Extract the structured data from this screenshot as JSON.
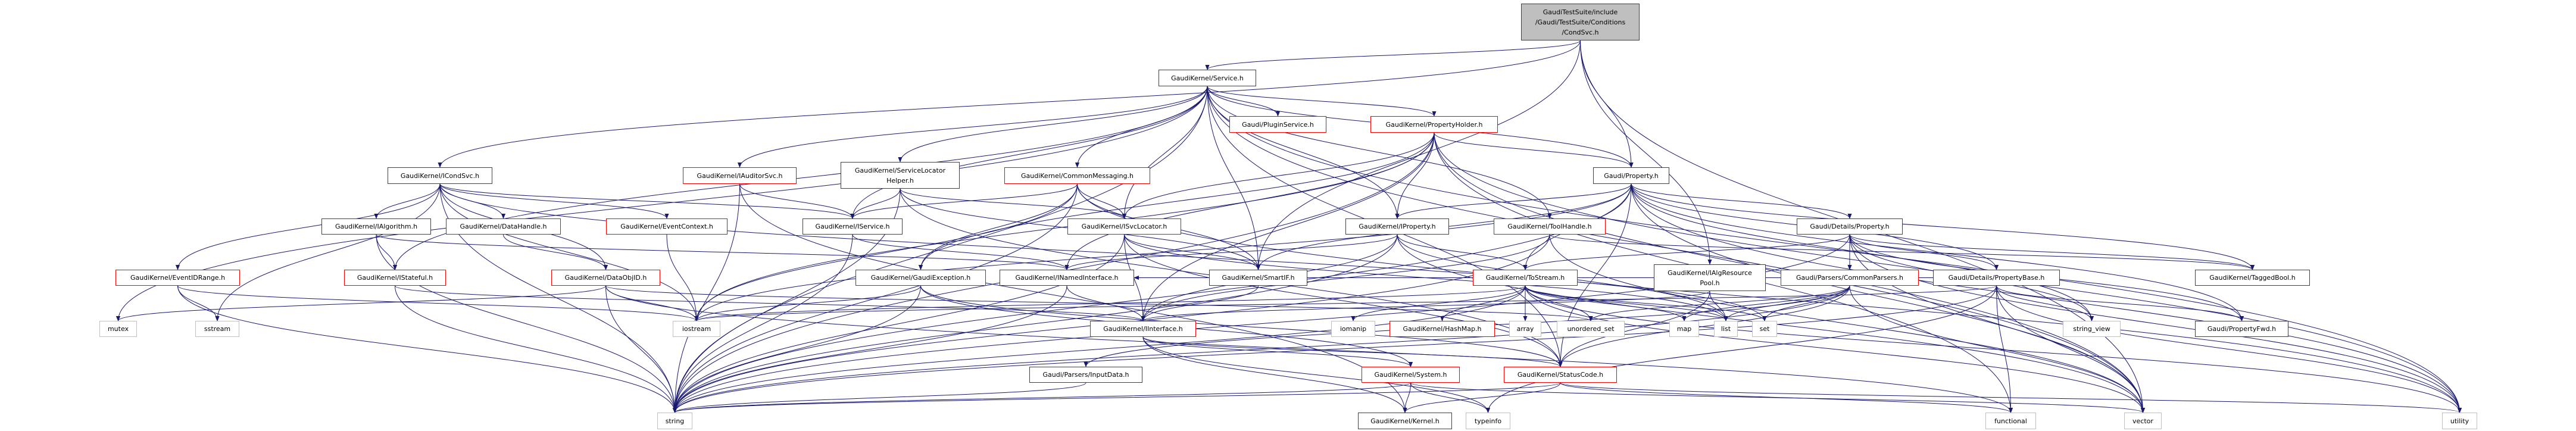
{
  "colors": {
    "edge": "#191970",
    "black_border": "#404040",
    "red_border": "#ff0000",
    "gray_border": "#bfbfbf",
    "root_fill": "#bfbfbf"
  },
  "nodes": [
    {
      "id": "CondSvc",
      "label": "GaudiTestSuite/include\n/Gaudi/TestSuite/Conditions\n/CondSvc.h",
      "style": "root"
    },
    {
      "id": "Service",
      "label": "GaudiKernel/Service.h",
      "style": "black"
    },
    {
      "id": "ICondSvc",
      "label": "GaudiKernel/ICondSvc.h",
      "style": "black"
    },
    {
      "id": "IAuditorSvc",
      "label": "GaudiKernel/IAuditorSvc.h",
      "style": "red"
    },
    {
      "id": "SvcLocHelper",
      "label": "GaudiKernel/ServiceLocator\nHelper.h",
      "style": "black"
    },
    {
      "id": "CommonMessaging",
      "label": "GaudiKernel/CommonMessaging.h",
      "style": "red"
    },
    {
      "id": "PluginService",
      "label": "Gaudi/PluginService.h",
      "style": "red"
    },
    {
      "id": "PropertyHolder",
      "label": "GaudiKernel/PropertyHolder.h",
      "style": "red"
    },
    {
      "id": "Property",
      "label": "Gaudi/Property.h",
      "style": "black"
    },
    {
      "id": "IAlgorithm",
      "label": "GaudiKernel/IAlgorithm.h",
      "style": "black"
    },
    {
      "id": "DataHandle",
      "label": "GaudiKernel/DataHandle.h",
      "style": "red"
    },
    {
      "id": "EventContext",
      "label": "GaudiKernel/EventContext.h",
      "style": "red"
    },
    {
      "id": "IService",
      "label": "GaudiKernel/IService.h",
      "style": "black"
    },
    {
      "id": "ISvcLocator",
      "label": "GaudiKernel/ISvcLocator.h",
      "style": "red"
    },
    {
      "id": "IProperty",
      "label": "GaudiKernel/IProperty.h",
      "style": "black"
    },
    {
      "id": "ToolHandle",
      "label": "GaudiKernel/ToolHandle.h",
      "style": "red"
    },
    {
      "id": "DetailsProperty",
      "label": "Gaudi/Details/Property.h",
      "style": "black"
    },
    {
      "id": "EventIDRange",
      "label": "GaudiKernel/EventIDRange.h",
      "style": "red"
    },
    {
      "id": "IStateful",
      "label": "GaudiKernel/IStateful.h",
      "style": "red"
    },
    {
      "id": "DataObjID",
      "label": "GaudiKernel/DataObjID.h",
      "style": "red"
    },
    {
      "id": "GaudiException",
      "label": "GaudiKernel/GaudiException.h",
      "style": "red"
    },
    {
      "id": "INamedInterface",
      "label": "GaudiKernel/INamedInterface.h",
      "style": "black"
    },
    {
      "id": "SmartIF",
      "label": "GaudiKernel/SmartIF.h",
      "style": "black"
    },
    {
      "id": "ToStream",
      "label": "GaudiKernel/ToStream.h",
      "style": "red"
    },
    {
      "id": "IAlgResourcePool",
      "label": "GaudiKernel/IAlgResource\nPool.h",
      "style": "black"
    },
    {
      "id": "CommonParsers",
      "label": "Gaudi/Parsers/CommonParsers.h",
      "style": "red"
    },
    {
      "id": "PropertyBase",
      "label": "Gaudi/Details/PropertyBase.h",
      "style": "black"
    },
    {
      "id": "TaggedBool",
      "label": "GaudiKernel/TaggedBool.h",
      "style": "black"
    },
    {
      "id": "mutex",
      "label": "mutex",
      "style": "gray"
    },
    {
      "id": "sstream",
      "label": "sstream",
      "style": "gray"
    },
    {
      "id": "iostream",
      "label": "iostream",
      "style": "gray"
    },
    {
      "id": "IInterface",
      "label": "GaudiKernel/IInterface.h",
      "style": "red"
    },
    {
      "id": "iomanip",
      "label": "iomanip",
      "style": "gray"
    },
    {
      "id": "HashMap",
      "label": "GaudiKernel/HashMap.h",
      "style": "red"
    },
    {
      "id": "array",
      "label": "array",
      "style": "gray"
    },
    {
      "id": "unordered_set",
      "label": "unordered_set",
      "style": "gray"
    },
    {
      "id": "map",
      "label": "map",
      "style": "gray"
    },
    {
      "id": "list",
      "label": "list",
      "style": "gray"
    },
    {
      "id": "set",
      "label": "set",
      "style": "gray"
    },
    {
      "id": "string_view",
      "label": "string_view",
      "style": "gray"
    },
    {
      "id": "PropertyFwd",
      "label": "Gaudi/PropertyFwd.h",
      "style": "black"
    },
    {
      "id": "InputData",
      "label": "Gaudi/Parsers/InputData.h",
      "style": "black"
    },
    {
      "id": "System",
      "label": "GaudiKernel/System.h",
      "style": "red"
    },
    {
      "id": "StatusCode",
      "label": "GaudiKernel/StatusCode.h",
      "style": "red"
    },
    {
      "id": "string",
      "label": "string",
      "style": "gray"
    },
    {
      "id": "Kernel",
      "label": "GaudiKernel/Kernel.h",
      "style": "black"
    },
    {
      "id": "typeinfo",
      "label": "typeinfo",
      "style": "gray"
    },
    {
      "id": "functional",
      "label": "functional",
      "style": "gray"
    },
    {
      "id": "vector",
      "label": "vector",
      "style": "gray"
    },
    {
      "id": "utility",
      "label": "utility",
      "style": "gray"
    }
  ],
  "edges": [
    [
      "CondSvc",
      "Service"
    ],
    [
      "CondSvc",
      "ICondSvc"
    ],
    [
      "CondSvc",
      "Property"
    ],
    [
      "CondSvc",
      "IAlgResourcePool"
    ],
    [
      "CondSvc",
      "SmartIF"
    ],
    [
      "CondSvc",
      "vector"
    ],
    [
      "Service",
      "PluginService"
    ],
    [
      "Service",
      "PropertyHolder"
    ],
    [
      "Service",
      "Property"
    ],
    [
      "Service",
      "IProperty"
    ],
    [
      "Service",
      "ToolHandle"
    ],
    [
      "Service",
      "SmartIF"
    ],
    [
      "Service",
      "ISvcLocator"
    ],
    [
      "Service",
      "CommonMessaging"
    ],
    [
      "Service",
      "SvcLocHelper"
    ],
    [
      "Service",
      "IAuditorSvc"
    ],
    [
      "Service",
      "IService"
    ],
    [
      "Service",
      "IStateful"
    ],
    [
      "Service",
      "string"
    ],
    [
      "Service",
      "mutex"
    ],
    [
      "Service",
      "vector"
    ],
    [
      "Service",
      "utility"
    ],
    [
      "Service",
      "StatusCode"
    ],
    [
      "PropertyHolder",
      "Property"
    ],
    [
      "PropertyHolder",
      "IProperty"
    ],
    [
      "PropertyHolder",
      "ISvcLocator"
    ],
    [
      "PropertyHolder",
      "INamedInterface"
    ],
    [
      "PropertyHolder",
      "IInterface"
    ],
    [
      "PropertyHolder",
      "GaudiException"
    ],
    [
      "PropertyHolder",
      "string"
    ],
    [
      "PropertyHolder",
      "vector"
    ],
    [
      "PropertyHolder",
      "utility"
    ],
    [
      "PropertyHolder",
      "functional"
    ],
    [
      "PropertyHolder",
      "iostream"
    ],
    [
      "ICondSvc",
      "IAlgorithm"
    ],
    [
      "ICondSvc",
      "DataHandle"
    ],
    [
      "ICondSvc",
      "EventContext"
    ],
    [
      "ICondSvc",
      "DataObjID"
    ],
    [
      "ICondSvc",
      "EventIDRange"
    ],
    [
      "ICondSvc",
      "IService"
    ],
    [
      "ICondSvc",
      "string"
    ],
    [
      "ICondSvc",
      "sstream"
    ],
    [
      "ICondSvc",
      "set"
    ],
    [
      "ICondSvc",
      "iostream"
    ],
    [
      "IAlgorithm",
      "IStateful"
    ],
    [
      "IAlgorithm",
      "string"
    ],
    [
      "IAlgorithm",
      "INamedInterface"
    ],
    [
      "DataHandle",
      "DataObjID"
    ],
    [
      "EventContext",
      "iostream"
    ],
    [
      "EventIDRange",
      "sstream"
    ],
    [
      "EventIDRange",
      "string"
    ],
    [
      "EventIDRange",
      "iostream"
    ],
    [
      "IStateful",
      "IInterface"
    ],
    [
      "IStateful",
      "string"
    ],
    [
      "DataObjID",
      "iostream"
    ],
    [
      "DataObjID",
      "string"
    ],
    [
      "DataObjID",
      "mutex"
    ],
    [
      "DataObjID",
      "unordered_set"
    ],
    [
      "DataObjID",
      "functional"
    ],
    [
      "IAuditorSvc",
      "IService"
    ],
    [
      "IAuditorSvc",
      "string"
    ],
    [
      "IAuditorSvc",
      "Kernel"
    ],
    [
      "SvcLocHelper",
      "IService"
    ],
    [
      "SvcLocHelper",
      "ISvcLocator"
    ],
    [
      "SvcLocHelper",
      "SmartIF"
    ],
    [
      "SvcLocHelper",
      "string"
    ],
    [
      "SvcLocHelper",
      "StatusCode"
    ],
    [
      "CommonMessaging",
      "ISvcLocator"
    ],
    [
      "CommonMessaging",
      "IService"
    ],
    [
      "CommonMessaging",
      "SmartIF"
    ],
    [
      "CommonMessaging",
      "GaudiException"
    ],
    [
      "CommonMessaging",
      "iostream"
    ],
    [
      "CommonMessaging",
      "string"
    ],
    [
      "CommonMessaging",
      "utility"
    ],
    [
      "IService",
      "INamedInterface"
    ],
    [
      "IService",
      "string"
    ],
    [
      "ISvcLocator",
      "IInterface"
    ],
    [
      "ISvcLocator",
      "SmartIF"
    ],
    [
      "ISvcLocator",
      "string"
    ],
    [
      "ISvcLocator",
      "list"
    ],
    [
      "ISvcLocator",
      "StatusCode"
    ],
    [
      "GaudiException",
      "string"
    ],
    [
      "GaudiException",
      "iostream"
    ],
    [
      "GaudiException",
      "System"
    ],
    [
      "GaudiException",
      "StatusCode"
    ],
    [
      "INamedInterface",
      "IInterface"
    ],
    [
      "INamedInterface",
      "string"
    ],
    [
      "IInterface",
      "System"
    ],
    [
      "IInterface",
      "StatusCode"
    ],
    [
      "IInterface",
      "Kernel"
    ],
    [
      "IInterface",
      "typeinfo"
    ],
    [
      "SmartIF",
      "IInterface"
    ],
    [
      "IProperty",
      "ToStream"
    ],
    [
      "IProperty",
      "INamedInterface"
    ],
    [
      "IProperty",
      "IInterface"
    ],
    [
      "IProperty",
      "string"
    ],
    [
      "IProperty",
      "vector"
    ],
    [
      "IProperty",
      "list"
    ],
    [
      "ToolHandle",
      "IInterface"
    ],
    [
      "ToolHandle",
      "string"
    ],
    [
      "ToolHandle",
      "vector"
    ],
    [
      "ToolHandle",
      "TaggedBool"
    ],
    [
      "Property",
      "DetailsProperty"
    ],
    [
      "Property",
      "PropertyBase"
    ],
    [
      "Property",
      "IProperty"
    ],
    [
      "Property",
      "ToStream"
    ],
    [
      "Property",
      "SmartIF"
    ],
    [
      "Property",
      "TaggedBool"
    ],
    [
      "Property",
      "PropertyFwd"
    ],
    [
      "Property",
      "string"
    ],
    [
      "Property",
      "string_view"
    ],
    [
      "Property",
      "utility"
    ],
    [
      "Property",
      "vector"
    ],
    [
      "Property",
      "iostream"
    ],
    [
      "Property",
      "StatusCode"
    ],
    [
      "DetailsProperty",
      "CommonParsers"
    ],
    [
      "DetailsProperty",
      "PropertyBase"
    ],
    [
      "DetailsProperty",
      "TaggedBool"
    ],
    [
      "DetailsProperty",
      "PropertyFwd"
    ],
    [
      "DetailsProperty",
      "string"
    ],
    [
      "DetailsProperty",
      "string_view"
    ],
    [
      "DetailsProperty",
      "utility"
    ],
    [
      "DetailsProperty",
      "vector"
    ],
    [
      "DetailsProperty",
      "ToStream"
    ],
    [
      "PropertyBase",
      "string_view"
    ],
    [
      "PropertyBase",
      "PropertyFwd"
    ],
    [
      "PropertyBase",
      "functional"
    ],
    [
      "PropertyBase",
      "vector"
    ],
    [
      "PropertyBase",
      "utility"
    ],
    [
      "PropertyBase",
      "string"
    ],
    [
      "PropertyBase",
      "iostream"
    ],
    [
      "PropertyBase",
      "INamedInterface"
    ],
    [
      "PropertyBase",
      "typeinfo"
    ],
    [
      "CommonParsers",
      "list"
    ],
    [
      "CommonParsers",
      "set"
    ],
    [
      "CommonParsers",
      "map"
    ],
    [
      "CommonParsers",
      "unordered_set"
    ],
    [
      "CommonParsers",
      "string"
    ],
    [
      "CommonParsers",
      "vector"
    ],
    [
      "CommonParsers",
      "StatusCode"
    ],
    [
      "CommonParsers",
      "InputData"
    ],
    [
      "ToStream",
      "iomanip"
    ],
    [
      "ToStream",
      "HashMap"
    ],
    [
      "ToStream",
      "array"
    ],
    [
      "ToStream",
      "unordered_set"
    ],
    [
      "ToStream",
      "map"
    ],
    [
      "ToStream",
      "list"
    ],
    [
      "ToStream",
      "set"
    ],
    [
      "ToStream",
      "string"
    ],
    [
      "ToStream",
      "vector"
    ],
    [
      "ToStream",
      "utility"
    ],
    [
      "ToStream",
      "iostream"
    ],
    [
      "IAlgResourcePool",
      "list"
    ],
    [
      "IAlgResourcePool",
      "IInterface"
    ],
    [
      "IAlgResourcePool",
      "StatusCode"
    ],
    [
      "System",
      "Kernel"
    ],
    [
      "System",
      "typeinfo"
    ],
    [
      "System",
      "string"
    ],
    [
      "System",
      "vector"
    ],
    [
      "StatusCode",
      "Kernel"
    ],
    [
      "StatusCode",
      "string"
    ],
    [
      "StatusCode",
      "functional"
    ],
    [
      "StatusCode",
      "utility"
    ],
    [
      "InputData",
      "string"
    ]
  ]
}
